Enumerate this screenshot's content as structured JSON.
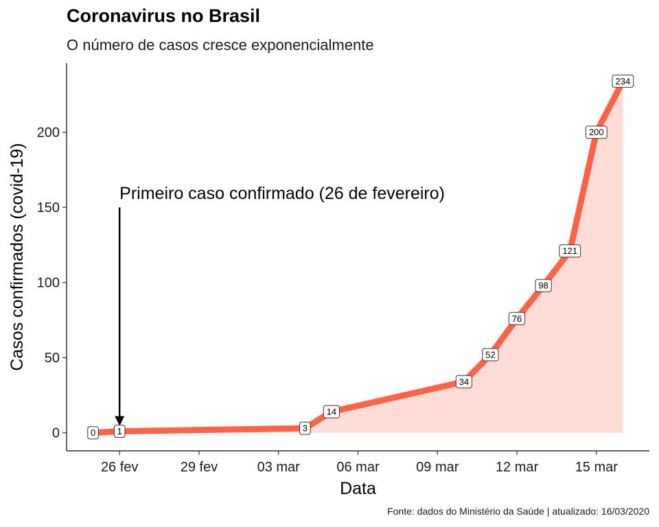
{
  "header": {
    "title": "Coronavirus no Brasil",
    "subtitle": "O número de casos cresce exponencialmente"
  },
  "caption": "Fonte: dados do Ministério da Saúde | atualizado: 16/03/2020",
  "colors": {
    "line": "#ff6347",
    "area": "#ffddd6",
    "axis": "#000000"
  },
  "chart_data": {
    "type": "area",
    "title": "Coronavirus no Brasil",
    "subtitle": "O número de casos cresce exponencialmente",
    "xlabel": "Data",
    "ylabel": "Casos confirmados (covid-19)",
    "x": [
      "2020-02-25",
      "2020-02-26",
      "2020-03-04",
      "2020-03-05",
      "2020-03-10",
      "2020-03-11",
      "2020-03-12",
      "2020-03-13",
      "2020-03-14",
      "2020-03-15",
      "2020-03-16"
    ],
    "series": [
      {
        "values": [
          0,
          1,
          3,
          14,
          34,
          52,
          76,
          98,
          121,
          200,
          234
        ]
      }
    ],
    "data_labels": [
      "0",
      "1",
      "3",
      "14",
      "34",
      "52",
      "76",
      "98",
      "121",
      "200",
      "234"
    ],
    "xlim": [
      "2020-02-24",
      "2020-03-17"
    ],
    "ylim": [
      -12,
      246
    ],
    "x_ticks": [
      {
        "date": "2020-02-26",
        "label": "26 fev"
      },
      {
        "date": "2020-02-29",
        "label": "29 fev"
      },
      {
        "date": "2020-03-03",
        "label": "03 mar"
      },
      {
        "date": "2020-03-06",
        "label": "06 mar"
      },
      {
        "date": "2020-03-09",
        "label": "09 mar"
      },
      {
        "date": "2020-03-12",
        "label": "12 mar"
      },
      {
        "date": "2020-03-15",
        "label": "15 mar"
      }
    ],
    "y_ticks": [
      0,
      50,
      100,
      150,
      200
    ],
    "grid": false,
    "annotation": {
      "text": "Primeiro caso confirmado (26 de fevereiro)",
      "arrow_x": "2020-02-26",
      "arrow_from_y": 150,
      "arrow_to_y": 1
    }
  }
}
